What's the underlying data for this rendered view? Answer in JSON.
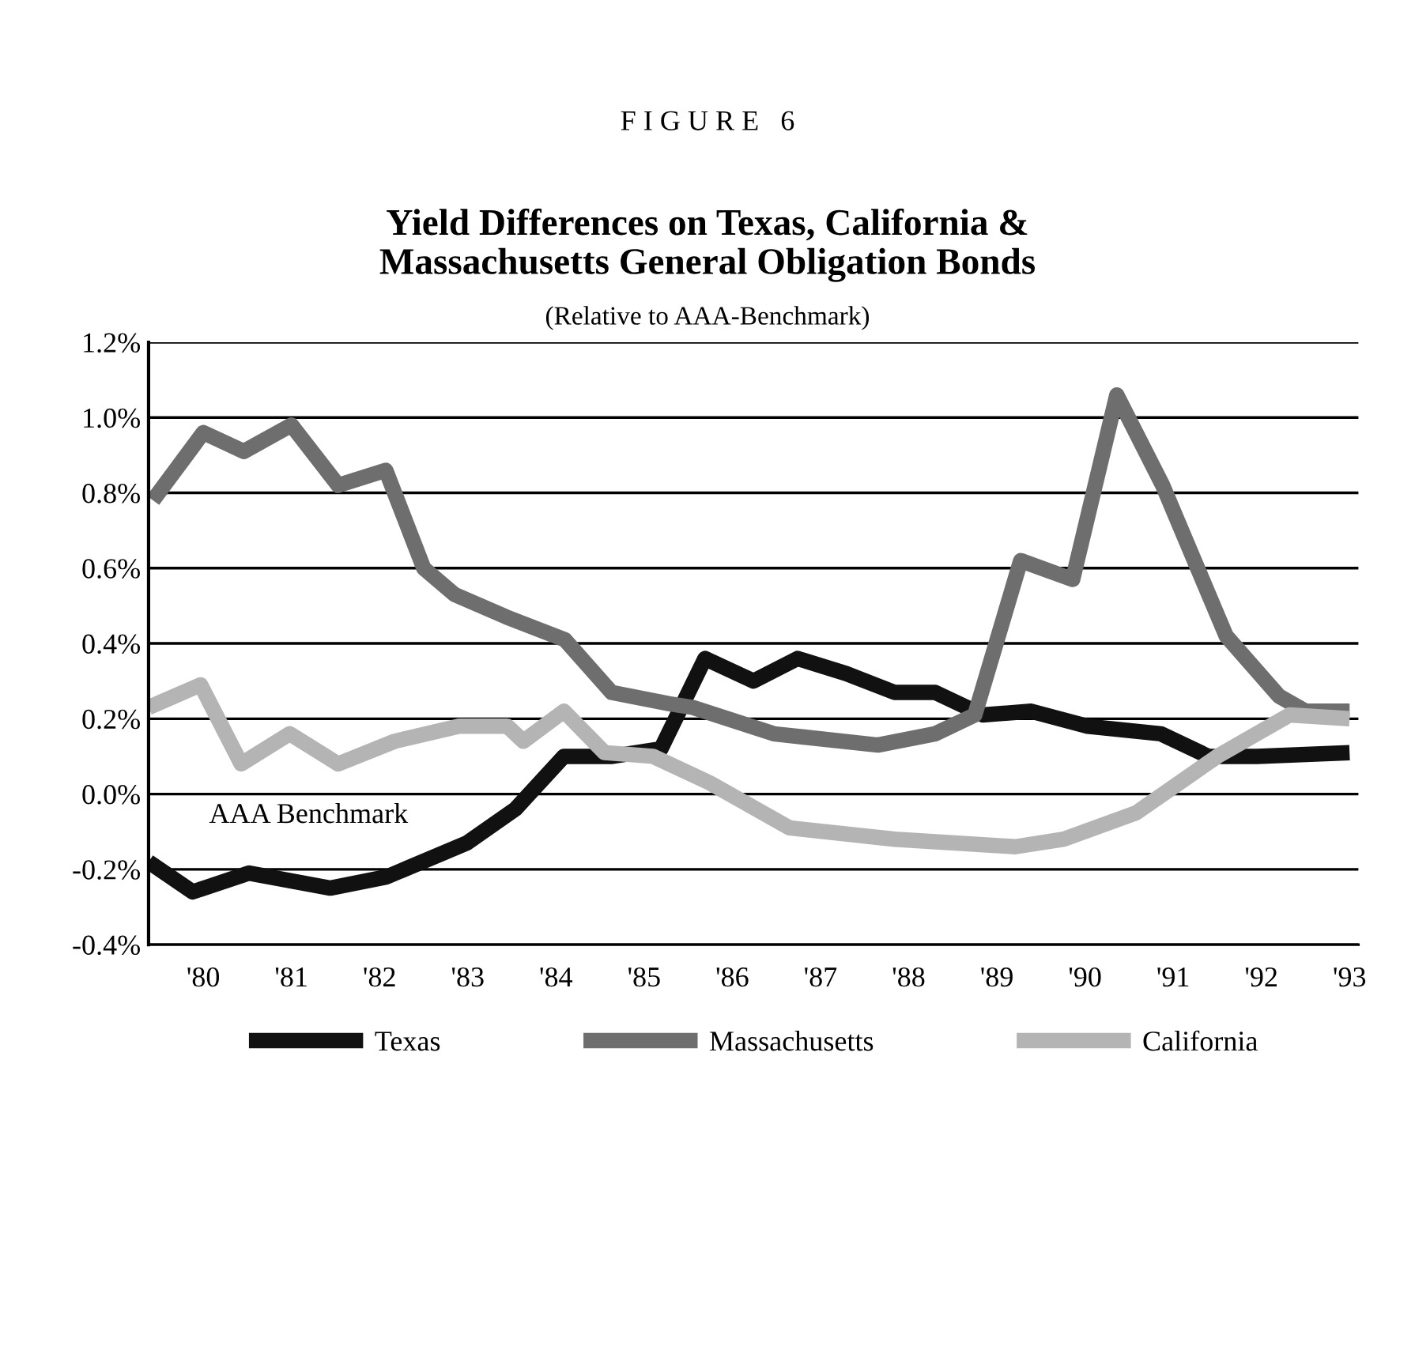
{
  "chart_data": {
    "type": "line",
    "title": "F I G U R E   6",
    "subtitle": "Yield Differences on Texas, California &\nMassachusetts General Obligation Bonds",
    "annotations": [
      "(Relative to AAA-Benchmark)",
      "AAA Benchmark"
    ],
    "series": [
      {
        "name": "Texas",
        "color": "#111111",
        "x": [
          79.38,
          79.88,
          80.52,
          81.44,
          82.08,
          82.99,
          83.54,
          84.09,
          84.64,
          85.19,
          85.69,
          86.24,
          86.74,
          87.29,
          87.84,
          88.3,
          88.84,
          89.39,
          90.03,
          90.86,
          91.4,
          91.95,
          93.0
        ],
        "values": [
          -0.18,
          -0.26,
          -0.21,
          -0.25,
          -0.22,
          -0.13,
          -0.04,
          0.1,
          0.1,
          0.12,
          0.36,
          0.3,
          0.36,
          0.32,
          0.27,
          0.27,
          0.21,
          0.22,
          0.18,
          0.16,
          0.1,
          0.1,
          0.11
        ]
      },
      {
        "name": "Massachusetts",
        "color": "#6e6e6e",
        "x": [
          79.43,
          80.0,
          80.46,
          81.0,
          81.53,
          82.07,
          82.5,
          82.85,
          83.44,
          84.1,
          84.63,
          85.28,
          85.55,
          86.47,
          87.65,
          88.3,
          88.75,
          89.27,
          89.86,
          90.36,
          90.88,
          91.6,
          92.2,
          92.5,
          93.0
        ],
        "values": [
          0.78,
          0.96,
          0.91,
          0.98,
          0.82,
          0.86,
          0.6,
          0.53,
          0.47,
          0.41,
          0.27,
          0.24,
          0.23,
          0.16,
          0.13,
          0.16,
          0.21,
          0.62,
          0.57,
          1.06,
          0.82,
          0.42,
          0.26,
          0.22,
          0.22
        ]
      },
      {
        "name": "California",
        "color": "#b4b4b4",
        "x": [
          79.38,
          79.97,
          80.43,
          80.98,
          81.53,
          82.17,
          82.9,
          83.45,
          83.63,
          84.09,
          84.55,
          85.1,
          85.74,
          86.65,
          87.84,
          89.21,
          89.76,
          90.58,
          91.5,
          92.32,
          93.0
        ],
        "values": [
          0.23,
          0.29,
          0.08,
          0.16,
          0.08,
          0.14,
          0.18,
          0.18,
          0.14,
          0.22,
          0.11,
          0.1,
          0.03,
          -0.09,
          -0.12,
          -0.14,
          -0.12,
          -0.05,
          0.1,
          0.21,
          0.2
        ]
      }
    ],
    "xlim": [
      79.38,
      93.1
    ],
    "xticks": [
      {
        "value": 80,
        "label": "'80"
      },
      {
        "value": 81,
        "label": "'81"
      },
      {
        "value": 82,
        "label": "'82"
      },
      {
        "value": 83,
        "label": "'83"
      },
      {
        "value": 84,
        "label": "'84"
      },
      {
        "value": 85,
        "label": "'85"
      },
      {
        "value": 86,
        "label": "'86"
      },
      {
        "value": 87,
        "label": "'87"
      },
      {
        "value": 88,
        "label": "'88"
      },
      {
        "value": 89,
        "label": "'89"
      },
      {
        "value": 90,
        "label": "'90"
      },
      {
        "value": 91,
        "label": "'91"
      },
      {
        "value": 92,
        "label": "'92"
      },
      {
        "value": 93,
        "label": "'93"
      }
    ],
    "ylim": [
      -0.4,
      1.2
    ],
    "yticks": [
      {
        "value": -0.4,
        "label": "-0.4%"
      },
      {
        "value": -0.2,
        "label": "-0.2%"
      },
      {
        "value": 0.0,
        "label": "0.0%"
      },
      {
        "value": 0.2,
        "label": "0.2%"
      },
      {
        "value": 0.4,
        "label": "0.4%"
      },
      {
        "value": 0.6,
        "label": "0.6%"
      },
      {
        "value": 0.8,
        "label": "0.8%"
      },
      {
        "value": 1.0,
        "label": "1.0%"
      },
      {
        "value": 1.2,
        "label": "1.2%"
      }
    ],
    "grid": "y",
    "legend": "bottom",
    "line_style": "solid",
    "marker": "none"
  }
}
